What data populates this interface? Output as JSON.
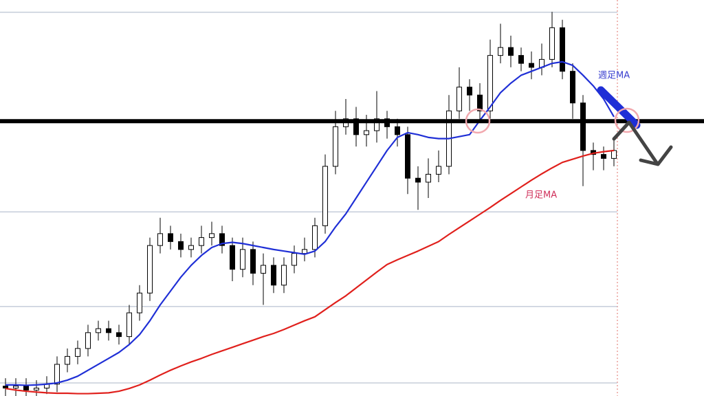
{
  "chart_data": {
    "type": "candlestick",
    "ylim": [
      0,
      100
    ],
    "yticks": [
      3.3,
      22.6,
      46.5,
      96.9
    ],
    "grid": true,
    "level": 69.4,
    "open": [
      2.5,
      2,
      2.5,
      1.5,
      2,
      3,
      8,
      10,
      12,
      16,
      17,
      16,
      15,
      21,
      26,
      38,
      41,
      39,
      37,
      38,
      40,
      41,
      38,
      32,
      37,
      31,
      33,
      28,
      33,
      36,
      37,
      43,
      58,
      68,
      70,
      66,
      67,
      70,
      68,
      66,
      55,
      54,
      56,
      58,
      72,
      78,
      76,
      72,
      86,
      88,
      86,
      84,
      83,
      85,
      93,
      82,
      74,
      62,
      61,
      60
    ],
    "high": [
      4.5,
      4.5,
      4.5,
      4,
      5,
      10,
      12,
      14,
      18,
      19,
      19,
      18,
      23,
      28,
      40,
      45,
      43,
      41,
      40,
      43,
      44,
      43,
      40,
      40,
      39,
      36,
      35,
      35,
      38,
      40,
      45,
      61,
      72,
      75,
      73,
      71,
      77,
      72,
      70,
      68,
      58,
      60,
      62,
      76,
      83,
      80,
      79,
      90,
      94,
      91,
      88,
      87,
      89,
      97,
      95,
      84,
      76,
      64,
      63,
      65
    ],
    "low": [
      0,
      0,
      0,
      0,
      0.5,
      1,
      6,
      8,
      10,
      14,
      14,
      13,
      13,
      19,
      24,
      36,
      37,
      35,
      35,
      36,
      38,
      36,
      29,
      30,
      28,
      23,
      26,
      26,
      31,
      34,
      35,
      41,
      56,
      66,
      63,
      63,
      64,
      65,
      63,
      51,
      47,
      50,
      54,
      56,
      70,
      72,
      69,
      70,
      84,
      83,
      82,
      80,
      81,
      83,
      80,
      70,
      53,
      57,
      57,
      58
    ],
    "close": [
      2,
      2.5,
      1.5,
      2,
      3,
      8,
      10,
      12,
      16,
      17,
      16,
      15,
      21,
      26,
      38,
      41,
      39,
      37,
      38,
      40,
      41,
      38,
      32,
      37,
      31,
      33,
      28,
      33,
      36,
      37,
      43,
      58,
      68,
      70,
      66,
      67,
      70,
      68,
      66,
      55,
      54,
      56,
      58,
      72,
      78,
      76,
      72,
      86,
      88,
      86,
      84,
      83,
      85,
      93,
      82,
      74,
      62,
      61,
      60,
      62
    ],
    "series": [
      {
        "name": "週足MA",
        "color": "#1f2fd6",
        "values": [
          2.8,
          2.8,
          2.7,
          2.8,
          3,
          3.3,
          4,
          5,
          6.5,
          8,
          9.5,
          11,
          13,
          15.5,
          19,
          23,
          26.5,
          30,
          33,
          35.5,
          37.5,
          38.5,
          38.8,
          38.5,
          38,
          37.5,
          37,
          36.6,
          36.2,
          35.8,
          36.6,
          39,
          42.7,
          46,
          50,
          54,
          58,
          62,
          65.3,
          66.5,
          66,
          65.3,
          65,
          65,
          65.5,
          66,
          69.6,
          73,
          76.6,
          79,
          81,
          82,
          83,
          84,
          84.4,
          83.5,
          81,
          78.3,
          75,
          70.5
        ]
      },
      {
        "name": "月足MA",
        "color": "#e0201c",
        "values": [
          1.9,
          1.5,
          1.2,
          1,
          0.8,
          0.7,
          0.7,
          0.6,
          0.6,
          0.7,
          0.8,
          1.2,
          1.9,
          2.8,
          4,
          5.3,
          6.5,
          7.6,
          8.6,
          9.5,
          10.5,
          11.4,
          12.3,
          13.2,
          14.1,
          15,
          15.8,
          16.8,
          17.9,
          19,
          20,
          21.8,
          23.6,
          25.3,
          27.3,
          29.3,
          31.3,
          33.2,
          34.4,
          35.5,
          36.6,
          37.8,
          39,
          40.8,
          42.5,
          44.2,
          45.9,
          47.6,
          49.4,
          51.1,
          52.8,
          54.5,
          56.1,
          57.6,
          59,
          59.8,
          60.6,
          61.3,
          61.7,
          62
        ]
      }
    ]
  }
}
